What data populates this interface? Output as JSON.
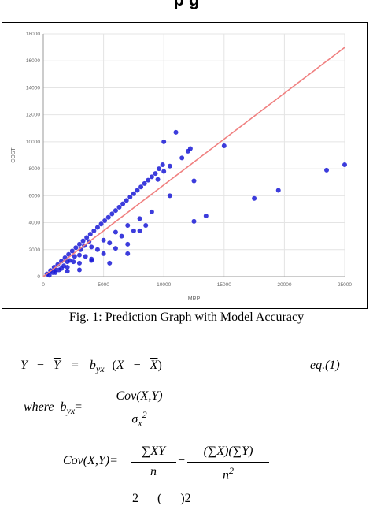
{
  "header": {
    "title": "p       g"
  },
  "figure": {
    "caption": "Fig. 1: Prediction Graph with Model Accuracy"
  },
  "chart_data": {
    "type": "scatter",
    "xlabel": "MRP",
    "ylabel": "COST",
    "xlim": [
      0,
      25000
    ],
    "ylim": [
      0,
      18000
    ],
    "x_ticks": [
      "0",
      "5000",
      "10000",
      "15000",
      "20000",
      "25000"
    ],
    "y_ticks": [
      "0",
      "2000",
      "4000",
      "6000",
      "8000",
      "10000",
      "12000",
      "14000",
      "16000",
      "18000"
    ],
    "grid": true,
    "point_color": "#1a1ad6",
    "line_color": "#f08080",
    "regression_line": {
      "x": [
        0,
        25000
      ],
      "y": [
        0,
        17000
      ]
    },
    "series": [
      {
        "points": [
          [
            300,
            200
          ],
          [
            600,
            450
          ],
          [
            900,
            700
          ],
          [
            1200,
            900
          ],
          [
            1500,
            1150
          ],
          [
            1800,
            1400
          ],
          [
            2100,
            1650
          ],
          [
            2400,
            1900
          ],
          [
            2700,
            2150
          ],
          [
            3000,
            2400
          ],
          [
            3300,
            2650
          ],
          [
            3600,
            2900
          ],
          [
            3900,
            3150
          ],
          [
            4200,
            3400
          ],
          [
            4500,
            3650
          ],
          [
            4800,
            3900
          ],
          [
            5100,
            4150
          ],
          [
            5400,
            4400
          ],
          [
            5700,
            4650
          ],
          [
            6000,
            4900
          ],
          [
            6300,
            5150
          ],
          [
            6600,
            5400
          ],
          [
            6900,
            5650
          ],
          [
            7200,
            5900
          ],
          [
            7500,
            6150
          ],
          [
            7800,
            6400
          ],
          [
            8100,
            6650
          ],
          [
            8400,
            6900
          ],
          [
            8700,
            7150
          ],
          [
            9000,
            7400
          ],
          [
            9300,
            7650
          ],
          [
            9600,
            8000
          ],
          [
            9900,
            8300
          ],
          [
            10000,
            10000
          ],
          [
            1000,
            500
          ],
          [
            2000,
            1100
          ],
          [
            3000,
            1600
          ],
          [
            4000,
            2200
          ],
          [
            5000,
            2700
          ],
          [
            6000,
            3300
          ],
          [
            7000,
            3800
          ],
          [
            8000,
            4300
          ],
          [
            9000,
            4800
          ],
          [
            1500,
            600
          ],
          [
            2500,
            1100
          ],
          [
            3500,
            1500
          ],
          [
            4500,
            2000
          ],
          [
            5500,
            2500
          ],
          [
            6500,
            3000
          ],
          [
            7500,
            3400
          ],
          [
            8500,
            3800
          ],
          [
            2000,
            700
          ],
          [
            3000,
            1000
          ],
          [
            4000,
            1300
          ],
          [
            5000,
            1700
          ],
          [
            6000,
            2100
          ],
          [
            7000,
            2400
          ],
          [
            1000,
            300
          ],
          [
            2000,
            400
          ],
          [
            3000,
            500
          ],
          [
            4000,
            1200
          ],
          [
            5500,
            1000
          ],
          [
            7000,
            1700
          ],
          [
            8000,
            3400
          ],
          [
            9500,
            7200
          ],
          [
            10000,
            7800
          ],
          [
            10500,
            8200
          ],
          [
            11000,
            10700
          ],
          [
            11500,
            8800
          ],
          [
            12000,
            9300
          ],
          [
            12200,
            9500
          ],
          [
            10500,
            6000
          ],
          [
            12500,
            7100
          ],
          [
            12500,
            4100
          ],
          [
            13500,
            4500
          ],
          [
            15000,
            9700
          ],
          [
            17500,
            5800
          ],
          [
            19500,
            6400
          ],
          [
            23500,
            7900
          ],
          [
            25000,
            8300
          ],
          [
            500,
            100
          ],
          [
            800,
            300
          ],
          [
            1300,
            500
          ],
          [
            1700,
            800
          ],
          [
            2200,
            1200
          ],
          [
            2600,
            1500
          ],
          [
            3100,
            2000
          ],
          [
            3400,
            2300
          ],
          [
            3800,
            2600
          ]
        ]
      }
    ]
  },
  "equations": {
    "eq1": {
      "lhs_y": "Y",
      "minus1": "−",
      "ybar": "Y",
      "equals": "=",
      "b": "b",
      "b_sub": "yx",
      "open": "(",
      "x": "X",
      "minus2": "−",
      "xbar": "X",
      "close": ")",
      "number": "eq.(1)"
    },
    "where": {
      "prefix": "where",
      "b": "b",
      "b_sub": "yx",
      "equals": "=",
      "numerator": "Cov(X,Y)",
      "denom_sigma": "σ",
      "denom_sub": "x",
      "denom_sup": "2"
    },
    "cov": {
      "lhs": "Cov(X,Y)=",
      "num1": "∑XY",
      "den1": "n",
      "minus": "−",
      "num2": "(∑X)(∑Y)",
      "den2": "n",
      "den2_sup": "2"
    },
    "partial": {
      "text": "2      (      )2"
    }
  }
}
